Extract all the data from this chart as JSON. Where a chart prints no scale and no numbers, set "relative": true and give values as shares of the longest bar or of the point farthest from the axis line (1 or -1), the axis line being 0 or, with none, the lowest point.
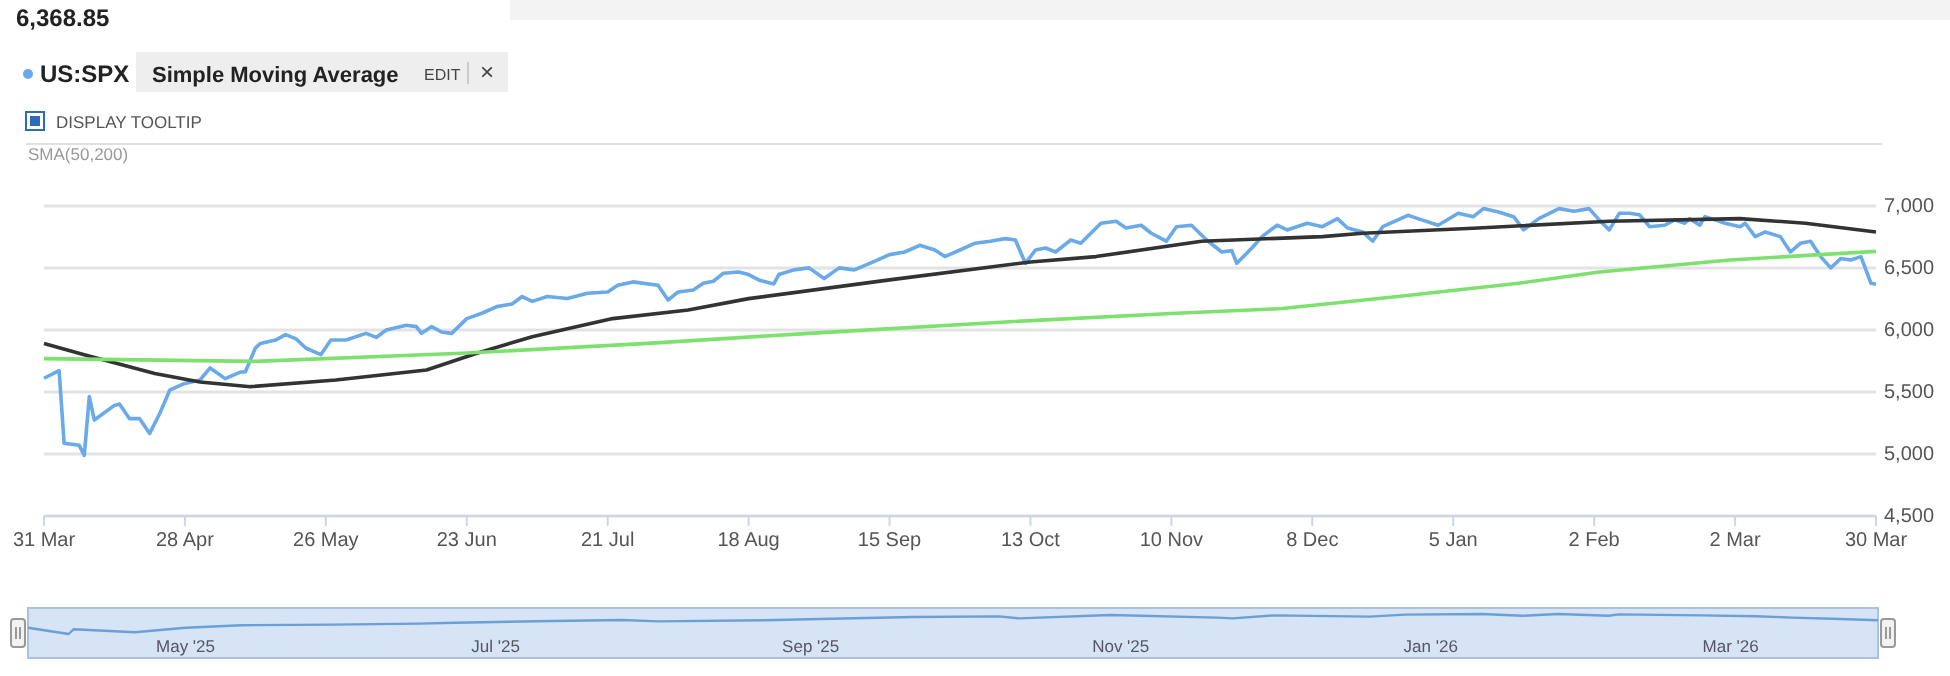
{
  "chart_data": [
    {
      "type": "line",
      "title": "6,368.85",
      "annotations": [
        "Simple Moving Average",
        "EDIT",
        "×",
        "DISPLAY TOOLTIP",
        "SMA(50,200)"
      ],
      "legend": "top left",
      "grid": "y",
      "xlim": [
        "2025-03-31",
        "2026-03-30"
      ],
      "xticks": [
        {
          "value": "2025-03-31",
          "label": "31 Mar"
        },
        {
          "value": "2025-04-28",
          "label": "28 Apr"
        },
        {
          "value": "2025-05-26",
          "label": "26 May"
        },
        {
          "value": "2025-06-23",
          "label": "23 Jun"
        },
        {
          "value": "2025-07-21",
          "label": "21 Jul"
        },
        {
          "value": "2025-08-18",
          "label": "18 Aug"
        },
        {
          "value": "2025-09-15",
          "label": "15 Sep"
        },
        {
          "value": "2025-10-13",
          "label": "13 Oct"
        },
        {
          "value": "2025-11-10",
          "label": "10 Nov"
        },
        {
          "value": "2025-12-08",
          "label": "8 Dec"
        },
        {
          "value": "2026-01-05",
          "label": "5 Jan"
        },
        {
          "value": "2026-02-02",
          "label": "2 Feb"
        },
        {
          "value": "2026-03-02",
          "label": "2 Mar"
        },
        {
          "value": "2026-03-30",
          "label": "30 Mar"
        }
      ],
      "ylim": [
        4500,
        7500
      ],
      "yticks": [
        {
          "value": 4500,
          "label": "4,500"
        },
        {
          "value": 5000,
          "label": "5,000"
        },
        {
          "value": 5500,
          "label": "5,500"
        },
        {
          "value": 6000,
          "label": "6,000"
        },
        {
          "value": 6500,
          "label": "6,500"
        },
        {
          "value": 7000,
          "label": "7,000"
        }
      ],
      "series": [
        {
          "name": "US:SPX",
          "color": "#6aaae8",
          "x": [
            "2025-03-31",
            "2025-04-03",
            "2025-04-04",
            "2025-04-07",
            "2025-04-08",
            "2025-04-09",
            "2025-04-10",
            "2025-04-14",
            "2025-04-15",
            "2025-04-17",
            "2025-04-19",
            "2025-04-21",
            "2025-04-23",
            "2025-04-25",
            "2025-04-28",
            "2025-05-01",
            "2025-05-03",
            "2025-05-06",
            "2025-05-09",
            "2025-05-10",
            "2025-05-12",
            "2025-05-13",
            "2025-05-16",
            "2025-05-18",
            "2025-05-20",
            "2025-05-22",
            "2025-05-25",
            "2025-05-27",
            "2025-05-30",
            "2025-06-03",
            "2025-06-05",
            "2025-06-07",
            "2025-06-11",
            "2025-06-13",
            "2025-06-14",
            "2025-06-16",
            "2025-06-18",
            "2025-06-20",
            "2025-06-23",
            "2025-06-26",
            "2025-06-29",
            "2025-07-02",
            "2025-07-04",
            "2025-07-06",
            "2025-07-09",
            "2025-07-13",
            "2025-07-17",
            "2025-07-21",
            "2025-07-23",
            "2025-07-26",
            "2025-07-31",
            "2025-08-02",
            "2025-08-04",
            "2025-08-07",
            "2025-08-09",
            "2025-08-11",
            "2025-08-13",
            "2025-08-16",
            "2025-08-18",
            "2025-08-20",
            "2025-08-23",
            "2025-08-24",
            "2025-08-27",
            "2025-08-30",
            "2025-09-02",
            "2025-09-05",
            "2025-09-08",
            "2025-09-12",
            "2025-09-15",
            "2025-09-18",
            "2025-09-21",
            "2025-09-24",
            "2025-09-26",
            "2025-09-29",
            "2025-10-02",
            "2025-10-05",
            "2025-10-08",
            "2025-10-10",
            "2025-10-12",
            "2025-10-14",
            "2025-10-16",
            "2025-10-18",
            "2025-10-21",
            "2025-10-23",
            "2025-10-27",
            "2025-10-30",
            "2025-11-01",
            "2025-11-04",
            "2025-11-06",
            "2025-11-09",
            "2025-11-11",
            "2025-11-14",
            "2025-11-17",
            "2025-11-20",
            "2025-11-22",
            "2025-11-23",
            "2025-11-26",
            "2025-11-28",
            "2025-12-01",
            "2025-12-03",
            "2025-12-07",
            "2025-12-10",
            "2025-12-13",
            "2025-12-15",
            "2025-12-18",
            "2025-12-20",
            "2025-12-22",
            "2025-12-27",
            "2025-12-29",
            "2026-01-02",
            "2026-01-06",
            "2026-01-09",
            "2026-01-11",
            "2026-01-14",
            "2026-01-17",
            "2026-01-19",
            "2026-01-22",
            "2026-01-26",
            "2026-01-29",
            "2026-02-01",
            "2026-02-03",
            "2026-02-05",
            "2026-02-07",
            "2026-02-09",
            "2026-02-11",
            "2026-02-13",
            "2026-02-16",
            "2026-02-18",
            "2026-02-20",
            "2026-02-21",
            "2026-02-23",
            "2026-02-24",
            "2026-02-26",
            "2026-02-28",
            "2026-03-03",
            "2026-03-04",
            "2026-03-06",
            "2026-03-08",
            "2026-03-11",
            "2026-03-13",
            "2026-03-15",
            "2026-03-17",
            "2026-03-19",
            "2026-03-21",
            "2026-03-23",
            "2026-03-25",
            "2026-03-27",
            "2026-03-28",
            "2026-03-29",
            "2026-03-30"
          ],
          "values": [
            5611,
            5673,
            5086,
            5070,
            4989,
            5463,
            5274,
            5392,
            5403,
            5285,
            5285,
            5166,
            5327,
            5516,
            5569,
            5597,
            5694,
            5608,
            5661,
            5661,
            5855,
            5892,
            5919,
            5963,
            5931,
            5855,
            5801,
            5919,
            5919,
            5973,
            5940,
            6000,
            6038,
            6027,
            5973,
            6027,
            5984,
            5973,
            6092,
            6135,
            6189,
            6210,
            6270,
            6231,
            6270,
            6254,
            6296,
            6307,
            6361,
            6388,
            6361,
            6242,
            6307,
            6323,
            6377,
            6393,
            6458,
            6468,
            6447,
            6404,
            6371,
            6447,
            6485,
            6501,
            6415,
            6501,
            6485,
            6554,
            6608,
            6629,
            6683,
            6645,
            6592,
            6645,
            6700,
            6716,
            6737,
            6726,
            6538,
            6645,
            6661,
            6629,
            6726,
            6700,
            6861,
            6877,
            6823,
            6845,
            6780,
            6716,
            6833,
            6845,
            6726,
            6629,
            6640,
            6538,
            6661,
            6753,
            6845,
            6807,
            6861,
            6833,
            6898,
            6823,
            6791,
            6716,
            6833,
            6925,
            6898,
            6845,
            6941,
            6914,
            6979,
            6952,
            6914,
            6807,
            6898,
            6979,
            6957,
            6979,
            6888,
            6807,
            6941,
            6941,
            6930,
            6833,
            6845,
            6888,
            6861,
            6898,
            6845,
            6914,
            6888,
            6861,
            6833,
            6861,
            6753,
            6791,
            6753,
            6629,
            6700,
            6716,
            6592,
            6501,
            6576,
            6565,
            6592,
            6485,
            6377,
            6369
          ]
        },
        {
          "color": "#333333",
          "x": [
            "2025-03-31",
            "2025-04-08",
            "2025-04-22",
            "2025-05-01",
            "2025-05-11",
            "2025-05-28",
            "2025-06-15",
            "2025-06-25",
            "2025-07-06",
            "2025-07-22",
            "2025-08-06",
            "2025-08-18",
            "2025-09-15",
            "2025-10-13",
            "2025-10-26",
            "2025-11-16",
            "2025-12-10",
            "2025-12-18",
            "2026-01-10",
            "2026-02-05",
            "2026-03-03",
            "2026-03-16",
            "2026-03-30"
          ],
          "values": [
            5892,
            5801,
            5650,
            5581,
            5543,
            5597,
            5677,
            5812,
            5946,
            6092,
            6161,
            6253,
            6404,
            6549,
            6592,
            6716,
            6753,
            6780,
            6823,
            6877,
            6898,
            6861,
            6791
          ]
        },
        {
          "color": "#7ee06e",
          "x": [
            "2025-03-31",
            "2025-05-12",
            "2025-06-22",
            "2025-07-29",
            "2025-08-30",
            "2025-10-08",
            "2025-11-11",
            "2025-12-02",
            "2025-12-25",
            "2026-01-18",
            "2026-02-03",
            "2026-03-01",
            "2026-03-30"
          ],
          "values": [
            5769,
            5747,
            5812,
            5892,
            5973,
            6065,
            6135,
            6173,
            6270,
            6377,
            6468,
            6565,
            6634
          ]
        }
      ]
    },
    {
      "type": "line",
      "relative": true,
      "color": "#6a9fd8",
      "xlim": [
        "2025-03-31",
        "2026-03-30"
      ],
      "xticks": [
        {
          "value": "2025-05-01",
          "label": "May '25"
        },
        {
          "value": "2025-07-01",
          "label": "Jul '25"
        },
        {
          "value": "2025-09-01",
          "label": "Sep '25"
        },
        {
          "value": "2025-11-01",
          "label": "Nov '25"
        },
        {
          "value": "2026-01-01",
          "label": "Jan '26"
        },
        {
          "value": "2026-03-01",
          "label": "Mar '26"
        }
      ],
      "x": [
        "2025-03-31",
        "2025-04-08",
        "2025-04-09",
        "2025-04-21",
        "2025-05-01",
        "2025-05-12",
        "2025-05-30",
        "2025-06-16",
        "2025-06-23",
        "2025-07-09",
        "2025-07-26",
        "2025-08-02",
        "2025-08-23",
        "2025-09-05",
        "2025-09-21",
        "2025-10-08",
        "2025-10-12",
        "2025-10-30",
        "2025-11-20",
        "2025-11-23",
        "2025-12-01",
        "2025-12-20",
        "2025-12-27",
        "2026-01-11",
        "2026-01-19",
        "2026-01-26",
        "2026-02-05",
        "2026-02-07",
        "2026-02-23",
        "2026-03-06",
        "2026-03-13",
        "2026-03-21",
        "2026-03-30"
      ],
      "values": [
        0.31,
        0,
        0.24,
        0.09,
        0.31,
        0.44,
        0.47,
        0.52,
        0.56,
        0.64,
        0.7,
        0.63,
        0.69,
        0.76,
        0.85,
        0.88,
        0.78,
        0.95,
        0.82,
        0.78,
        0.93,
        0.87,
        0.97,
        1,
        0.91,
        1,
        0.91,
        0.98,
        0.93,
        0.89,
        0.82,
        0.76,
        0.69
      ]
    }
  ]
}
